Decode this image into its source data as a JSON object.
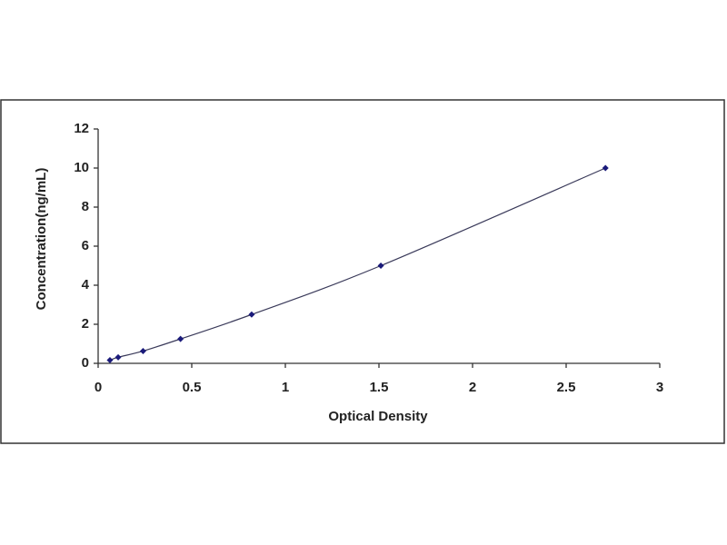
{
  "chart_data": {
    "type": "scatter",
    "xlabel": "Optical Density",
    "ylabel": "Concentration(ng/mL)",
    "x": [
      0.063,
      0.107,
      0.24,
      0.44,
      0.82,
      1.51,
      2.71
    ],
    "values": [
      0.16,
      0.31,
      0.63,
      1.25,
      2.5,
      5,
      10
    ],
    "color": "#1a1a7a",
    "line_color": "#3a3a5a",
    "xlim": [
      0,
      3
    ],
    "xticks": [
      0,
      0.5,
      1,
      1.5,
      2,
      2.5,
      3
    ],
    "ylim": [
      0,
      12
    ],
    "yticks": [
      0,
      2,
      4,
      6,
      8,
      10,
      12
    ],
    "grid": false
  }
}
